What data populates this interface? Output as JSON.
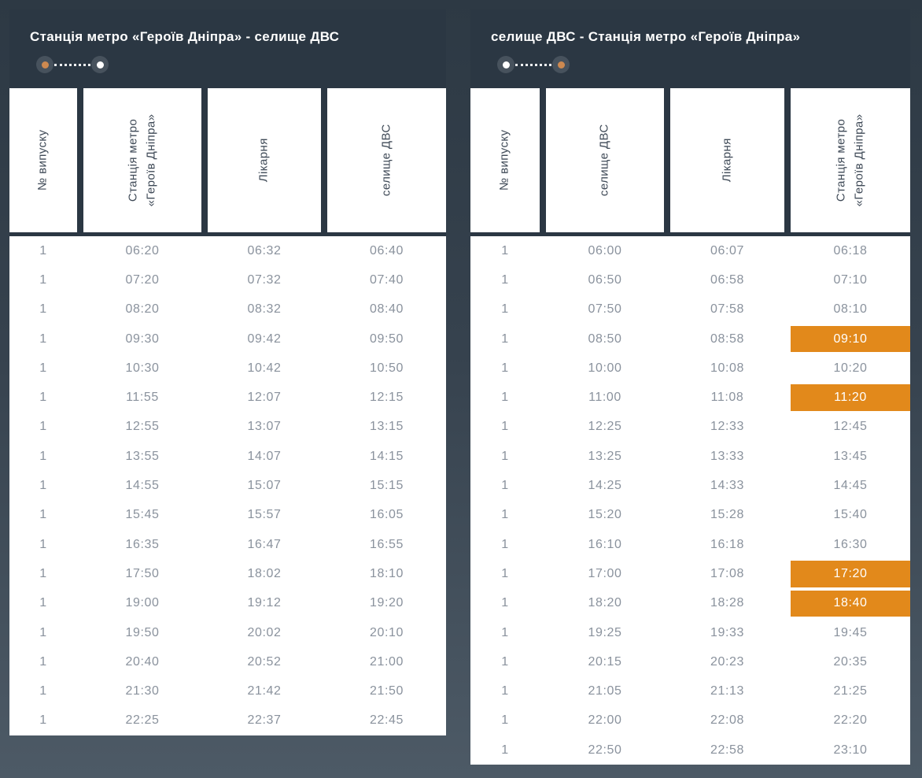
{
  "colors": {
    "page_bg_top": "#2d3944",
    "page_bg_bottom": "#4d5a66",
    "card_dark": "#2b3743",
    "highlight_orange": "#e2891b",
    "indicator_orange_dot": "#cd8950",
    "time_text": "#8a929d",
    "column_header_text": "#3f4a57"
  },
  "tables": [
    {
      "title": "Станція метро «Героїв Дніпра» - селище ДВС",
      "route_indicator": {
        "start_dot": "orange",
        "end_dot": "white"
      },
      "columns": [
        "№ випуску",
        "Станція метро\n«Героїв Дніпра»",
        "Лікарня",
        "селище ДВС"
      ],
      "rows": [
        {
          "cells": [
            "1",
            "06:20",
            "06:32",
            "06:40"
          ],
          "highlight": []
        },
        {
          "cells": [
            "1",
            "07:20",
            "07:32",
            "07:40"
          ],
          "highlight": []
        },
        {
          "cells": [
            "1",
            "08:20",
            "08:32",
            "08:40"
          ],
          "highlight": []
        },
        {
          "cells": [
            "1",
            "09:30",
            "09:42",
            "09:50"
          ],
          "highlight": []
        },
        {
          "cells": [
            "1",
            "10:30",
            "10:42",
            "10:50"
          ],
          "highlight": []
        },
        {
          "cells": [
            "1",
            "11:55",
            "12:07",
            "12:15"
          ],
          "highlight": []
        },
        {
          "cells": [
            "1",
            "12:55",
            "13:07",
            "13:15"
          ],
          "highlight": []
        },
        {
          "cells": [
            "1",
            "13:55",
            "14:07",
            "14:15"
          ],
          "highlight": []
        },
        {
          "cells": [
            "1",
            "14:55",
            "15:07",
            "15:15"
          ],
          "highlight": []
        },
        {
          "cells": [
            "1",
            "15:45",
            "15:57",
            "16:05"
          ],
          "highlight": []
        },
        {
          "cells": [
            "1",
            "16:35",
            "16:47",
            "16:55"
          ],
          "highlight": []
        },
        {
          "cells": [
            "1",
            "17:50",
            "18:02",
            "18:10"
          ],
          "highlight": []
        },
        {
          "cells": [
            "1",
            "19:00",
            "19:12",
            "19:20"
          ],
          "highlight": []
        },
        {
          "cells": [
            "1",
            "19:50",
            "20:02",
            "20:10"
          ],
          "highlight": []
        },
        {
          "cells": [
            "1",
            "20:40",
            "20:52",
            "21:00"
          ],
          "highlight": []
        },
        {
          "cells": [
            "1",
            "21:30",
            "21:42",
            "21:50"
          ],
          "highlight": []
        },
        {
          "cells": [
            "1",
            "22:25",
            "22:37",
            "22:45"
          ],
          "highlight": []
        }
      ]
    },
    {
      "title": "селище ДВС - Станція метро «Героїв Дніпра»",
      "route_indicator": {
        "start_dot": "white",
        "end_dot": "orange"
      },
      "columns": [
        "№ випуску",
        "селище ДВС",
        "Лікарня",
        "Станція метро\n«Героїв Дніпра»"
      ],
      "rows": [
        {
          "cells": [
            "1",
            "06:00",
            "06:07",
            "06:18"
          ],
          "highlight": []
        },
        {
          "cells": [
            "1",
            "06:50",
            "06:58",
            "07:10"
          ],
          "highlight": []
        },
        {
          "cells": [
            "1",
            "07:50",
            "07:58",
            "08:10"
          ],
          "highlight": []
        },
        {
          "cells": [
            "1",
            "08:50",
            "08:58",
            "09:10"
          ],
          "highlight": [
            3
          ]
        },
        {
          "cells": [
            "1",
            "10:00",
            "10:08",
            "10:20"
          ],
          "highlight": []
        },
        {
          "cells": [
            "1",
            "11:00",
            "11:08",
            "11:20"
          ],
          "highlight": [
            3
          ]
        },
        {
          "cells": [
            "1",
            "12:25",
            "12:33",
            "12:45"
          ],
          "highlight": []
        },
        {
          "cells": [
            "1",
            "13:25",
            "13:33",
            "13:45"
          ],
          "highlight": []
        },
        {
          "cells": [
            "1",
            "14:25",
            "14:33",
            "14:45"
          ],
          "highlight": []
        },
        {
          "cells": [
            "1",
            "15:20",
            "15:28",
            "15:40"
          ],
          "highlight": []
        },
        {
          "cells": [
            "1",
            "16:10",
            "16:18",
            "16:30"
          ],
          "highlight": []
        },
        {
          "cells": [
            "1",
            "17:00",
            "17:08",
            "17:20"
          ],
          "highlight": [
            3
          ]
        },
        {
          "cells": [
            "1",
            "18:20",
            "18:28",
            "18:40"
          ],
          "highlight": [
            3
          ]
        },
        {
          "cells": [
            "1",
            "19:25",
            "19:33",
            "19:45"
          ],
          "highlight": []
        },
        {
          "cells": [
            "1",
            "20:15",
            "20:23",
            "20:35"
          ],
          "highlight": []
        },
        {
          "cells": [
            "1",
            "21:05",
            "21:13",
            "21:25"
          ],
          "highlight": []
        },
        {
          "cells": [
            "1",
            "22:00",
            "22:08",
            "22:20"
          ],
          "highlight": []
        },
        {
          "cells": [
            "1",
            "22:50",
            "22:58",
            "23:10"
          ],
          "highlight": []
        }
      ]
    }
  ]
}
